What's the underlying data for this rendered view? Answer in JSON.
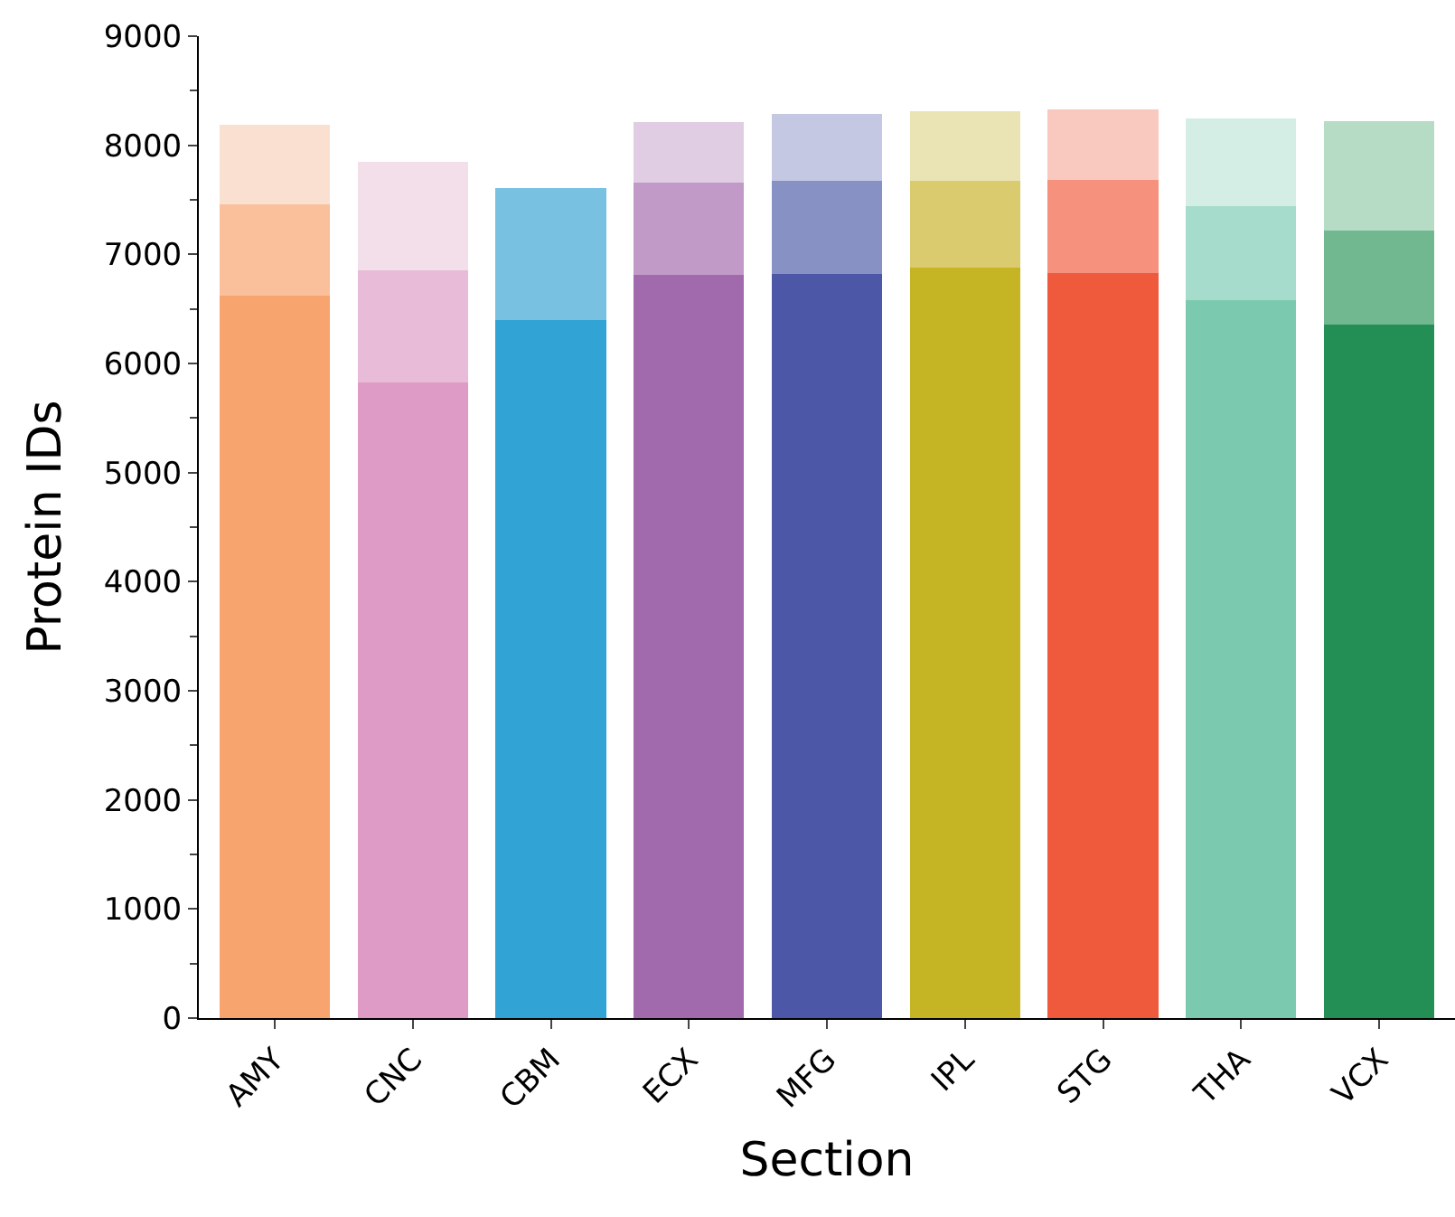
{
  "chart_data": {
    "type": "bar",
    "stacked": true,
    "xlabel": "Section",
    "ylabel": "Protein IDs",
    "categories": [
      "AMY",
      "CNC",
      "CBM",
      "ECX",
      "MFG",
      "IPL",
      "STG",
      "THA",
      "VCX"
    ],
    "ylim": [
      0,
      9000
    ],
    "yticks": [
      0,
      1000,
      2000,
      3000,
      4000,
      5000,
      6000,
      7000,
      8000,
      9000
    ],
    "series": [
      {
        "values": [
          6620,
          5830,
          6400,
          6810,
          6820,
          6880,
          6830,
          6580,
          6360
        ],
        "colors": [
          "#f7a46e",
          "#de9bc6",
          "#31a3d4",
          "#a06aad",
          "#4c58a7",
          "#c5b424",
          "#ef5a3c",
          "#7bcab0",
          "#238f55"
        ]
      },
      {
        "values": [
          840,
          1020,
          1210,
          850,
          850,
          790,
          850,
          860,
          860
        ],
        "colors": [
          "#fac09c",
          "#e8bcd8",
          "#79c1e1",
          "#c19ac8",
          "#8891c4",
          "#d9cb6e",
          "#f5917c",
          "#a6dccb",
          "#71b78f"
        ]
      },
      {
        "values": [
          730,
          1000,
          null,
          550,
          620,
          640,
          650,
          810,
          1000
        ],
        "colors": [
          "#fae0d0",
          "#f2dfea",
          "#ffffff",
          "#e0cde3",
          "#c4c8e3",
          "#eae4b5",
          "#f9c9bf",
          "#d4ede5",
          "#b6dcc6"
        ]
      }
    ]
  }
}
